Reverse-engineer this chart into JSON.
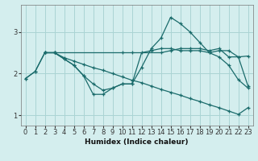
{
  "xlabel": "Humidex (Indice chaleur)",
  "background_color": "#d4eeee",
  "grid_color": "#aad4d4",
  "line_color": "#1a6b6b",
  "xlim": [
    -0.5,
    23.5
  ],
  "ylim": [
    0.75,
    3.65
  ],
  "yticks": [
    1,
    2,
    3
  ],
  "xticks": [
    0,
    1,
    2,
    3,
    4,
    5,
    6,
    7,
    8,
    9,
    10,
    11,
    12,
    13,
    14,
    15,
    16,
    17,
    18,
    19,
    20,
    21,
    22,
    23
  ],
  "lines": [
    {
      "x": [
        2,
        3,
        10,
        11,
        14,
        15,
        16,
        17,
        18,
        19,
        20,
        21,
        22,
        23
      ],
      "y": [
        2.5,
        2.5,
        2.5,
        2.5,
        2.5,
        2.55,
        2.6,
        2.6,
        2.6,
        2.55,
        2.6,
        2.4,
        2.4,
        2.42
      ]
    },
    {
      "x": [
        0,
        1,
        2,
        3,
        4,
        5,
        6,
        7,
        8,
        9,
        10,
        11,
        12,
        13,
        14,
        15,
        16,
        17,
        18,
        19,
        20,
        21,
        22,
        23
      ],
      "y": [
        1.88,
        2.05,
        2.5,
        2.5,
        2.35,
        2.2,
        1.95,
        1.5,
        1.5,
        1.65,
        1.75,
        1.75,
        2.15,
        2.6,
        2.85,
        3.35,
        3.2,
        3.0,
        2.75,
        2.5,
        2.4,
        2.2,
        1.85,
        1.65
      ]
    },
    {
      "x": [
        2,
        3,
        4,
        5,
        6,
        7,
        8,
        9,
        10,
        11,
        12,
        13,
        14,
        15,
        16,
        17,
        18,
        19,
        20,
        21,
        22,
        23
      ],
      "y": [
        2.5,
        2.5,
        2.38,
        2.3,
        2.22,
        2.14,
        2.08,
        2.0,
        1.92,
        1.84,
        1.78,
        1.7,
        1.62,
        1.55,
        1.48,
        1.4,
        1.33,
        1.25,
        1.18,
        1.1,
        1.02,
        1.18
      ]
    },
    {
      "x": [
        0,
        1,
        2,
        3,
        4,
        5,
        6,
        7,
        8,
        9,
        10,
        11,
        12,
        13,
        14,
        15,
        16,
        17,
        18,
        19,
        20,
        21,
        22,
        23
      ],
      "y": [
        1.88,
        2.05,
        2.5,
        2.5,
        2.35,
        2.2,
        1.95,
        1.75,
        1.6,
        1.65,
        1.75,
        1.75,
        2.5,
        2.55,
        2.6,
        2.6,
        2.55,
        2.55,
        2.55,
        2.5,
        2.55,
        2.55,
        2.4,
        1.7
      ]
    }
  ]
}
